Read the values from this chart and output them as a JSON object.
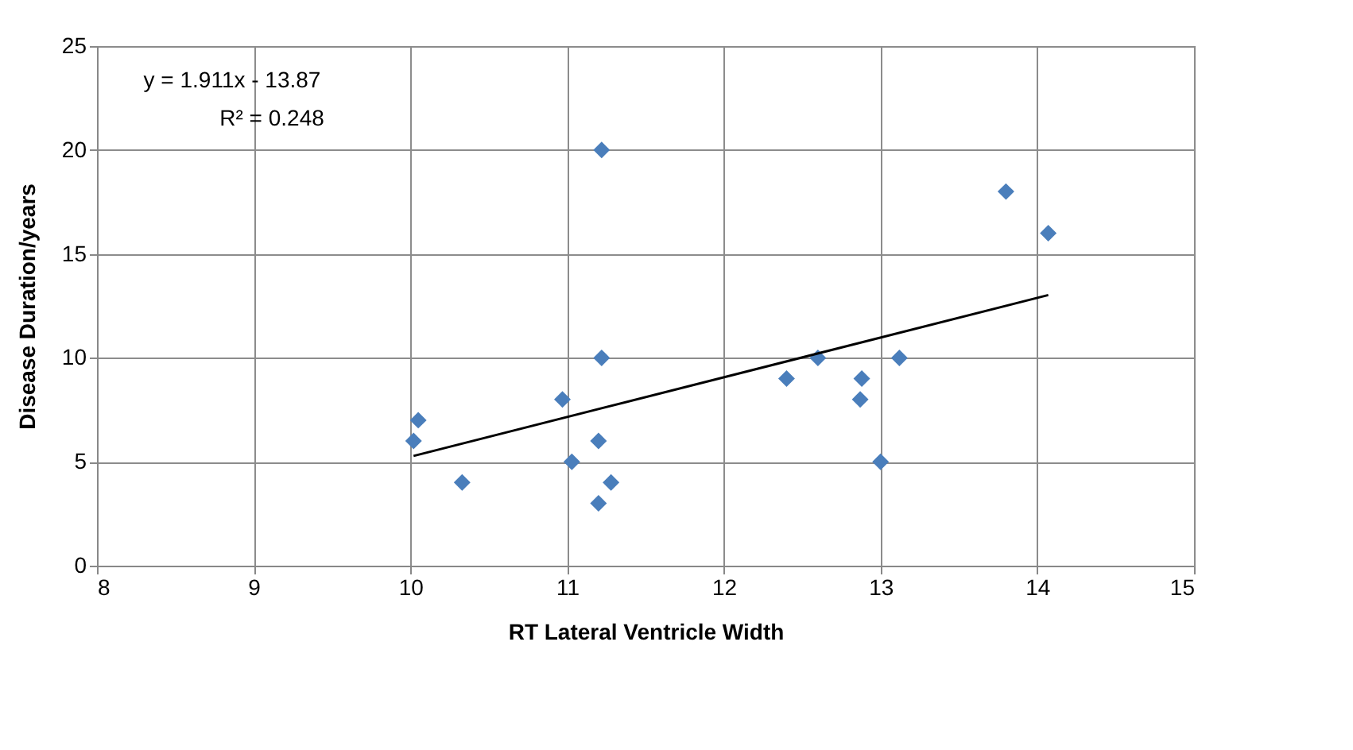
{
  "chart_data": {
    "type": "scatter",
    "xlabel": "RT Lateral Ventricle Width",
    "ylabel": "Disease Duration/years",
    "annotations": [
      "y = 1.911x - 13.87",
      "R² = 0.248"
    ],
    "xlim": [
      8,
      15
    ],
    "xticks": [
      8,
      9,
      10,
      11,
      12,
      13,
      14,
      15
    ],
    "ylim": [
      0,
      25
    ],
    "yticks": [
      0,
      5,
      10,
      15,
      20,
      25
    ],
    "grid": true,
    "marker": "diamond",
    "series": [
      {
        "color": "#4a7ebb",
        "x": [
          10.02,
          10.05,
          10.33,
          10.97,
          11.03,
          11.22,
          11.22,
          11.2,
          11.2,
          11.28,
          12.4,
          12.6,
          12.87,
          12.88,
          13.0,
          13.12,
          13.8,
          14.07
        ],
        "values": [
          6,
          7,
          4,
          8,
          5,
          20,
          10,
          6,
          3,
          4,
          9,
          10,
          8,
          9,
          5,
          10,
          18,
          16
        ]
      },
      {
        "type": "line",
        "color": "#000000",
        "x": [
          10.02,
          14.07
        ],
        "values": [
          5.28,
          13.02
        ],
        "marker": "none",
        "line_style": "solid"
      }
    ]
  }
}
